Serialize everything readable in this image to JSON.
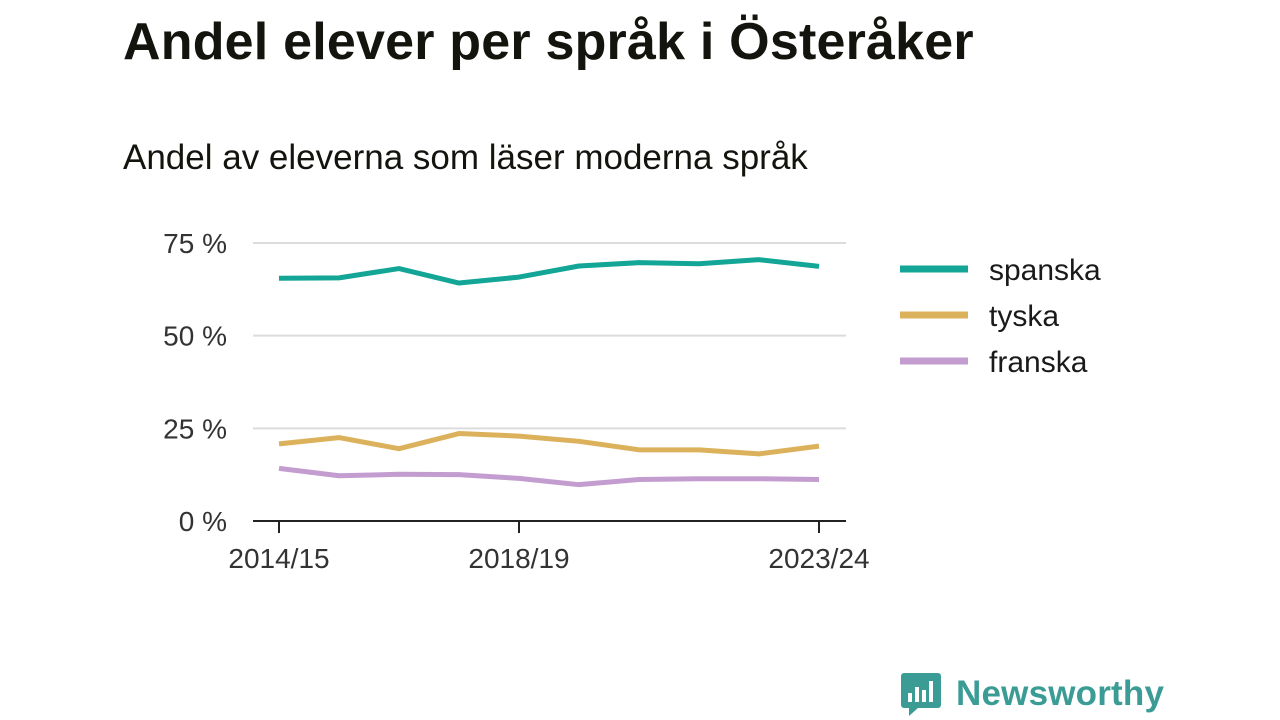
{
  "chart_data": {
    "type": "line",
    "title": "Andel elever per språk i Österåker",
    "subtitle": "Andel av eleverna som läser moderna språk",
    "x_tick_labels": [
      "2014/15",
      "2018/19",
      "2023/24"
    ],
    "y_ticks": [
      0,
      25,
      50,
      75
    ],
    "y_tick_labels": [
      "0 %",
      "25 %",
      "50 %",
      "75 %"
    ],
    "ylim": [
      0,
      75
    ],
    "grid": true,
    "legend_position": "right",
    "categories": [
      "2014/15",
      "2015/16",
      "2016/17",
      "2017/18",
      "2018/19",
      "2019/20",
      "2020/21",
      "2021/22",
      "2022/23",
      "2023/24"
    ],
    "series": [
      {
        "name": "spanska",
        "color": "#13a596",
        "values": [
          65.5,
          65.6,
          68.1,
          64.2,
          65.8,
          68.8,
          69.7,
          69.4,
          70.5,
          68.7
        ]
      },
      {
        "name": "tyska",
        "color": "#dcb15c",
        "values": [
          20.8,
          22.5,
          19.5,
          23.6,
          22.9,
          21.5,
          19.2,
          19.2,
          18.1,
          20.2
        ]
      },
      {
        "name": "franska",
        "color": "#c39dcf",
        "values": [
          14.2,
          12.2,
          12.6,
          12.5,
          11.5,
          9.8,
          11.2,
          11.4,
          11.4,
          11.2
        ]
      }
    ]
  },
  "brand": {
    "name": "Newsworthy",
    "color": "#3a9c94"
  }
}
